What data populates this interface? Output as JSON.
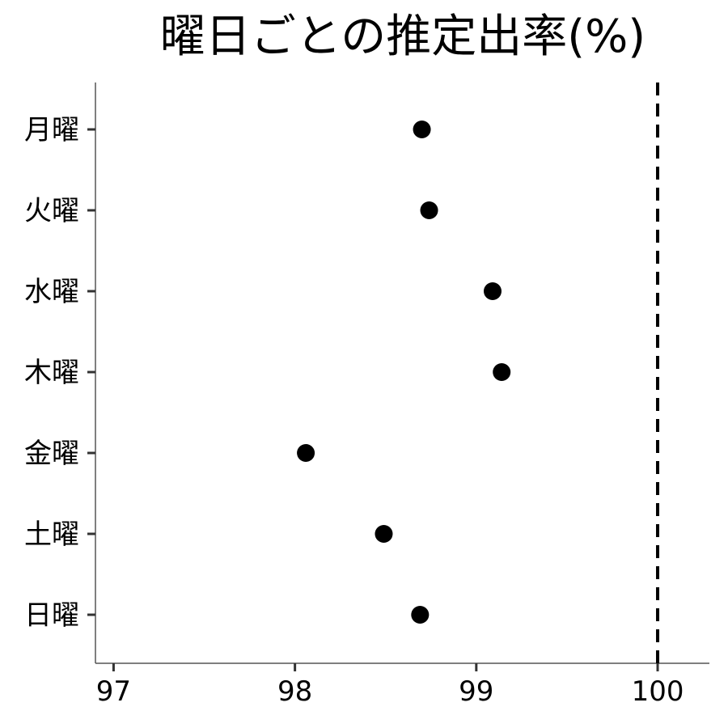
{
  "chart_data": {
    "type": "scatter",
    "title": "曜日ごとの推定出率(%)",
    "xlabel": "",
    "ylabel": "",
    "categories": [
      "月曜",
      "火曜",
      "水曜",
      "木曜",
      "金曜",
      "土曜",
      "日曜"
    ],
    "values": [
      98.7,
      98.74,
      99.09,
      99.14,
      98.06,
      98.49,
      98.69
    ],
    "x_ticks": [
      "97",
      "98",
      "99",
      "100"
    ],
    "xlim": [
      96.9,
      100.3
    ],
    "reference_line": 100,
    "grid": false,
    "colors": {
      "points": "#000000",
      "reference_line": "#000000",
      "axis": "#555555"
    }
  }
}
